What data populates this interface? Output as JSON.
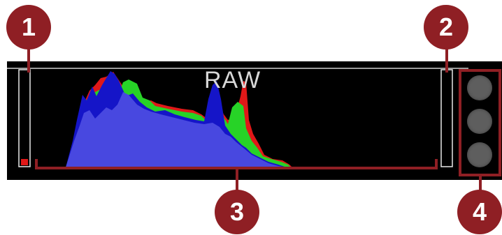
{
  "histogram": {
    "mode_label": "RAW",
    "channel_colors": {
      "red": "#e01818",
      "green": "#27d327",
      "blue": "#1515c8",
      "overlap": "#4848e0"
    }
  },
  "callouts": [
    "1",
    "2",
    "3",
    "4"
  ],
  "colors": {
    "callout": "#8f1f24",
    "panel": "#000000",
    "button": "#5e5e5e"
  },
  "clipping_buttons_count": 3
}
